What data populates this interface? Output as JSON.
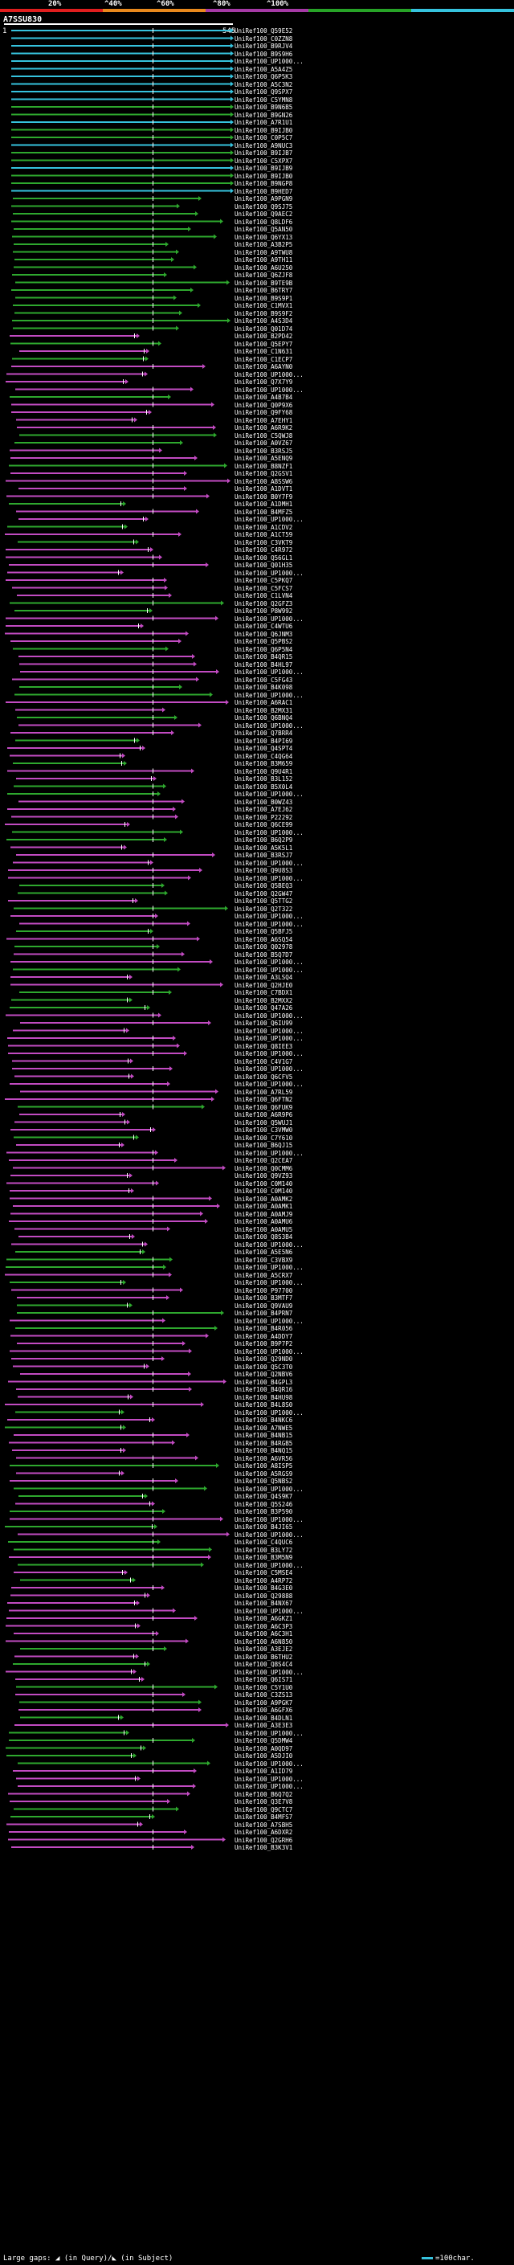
{
  "query": {
    "id": "A7SSU830",
    "range_start": "1",
    "range_end": "545"
  },
  "legend": {
    "labels": [
      "20%",
      "^40%",
      "^60%",
      "^80%",
      "^100%"
    ],
    "colors": [
      "#e01e1e",
      "#e9891d",
      "#a63aa6",
      "#27a327",
      "#36c3de"
    ]
  },
  "footer": {
    "text": "Large gaps: ◢ (in Query)/◣ (in Subject)",
    "scale_text": "=100char."
  },
  "colors": {
    "cyan": "#36c3de",
    "green": "#2ea82e",
    "magenta": "#c24bc2",
    "orange": "#e9891d",
    "white": "#ffffff"
  },
  "hits": [
    "UniRef100_Q59E52",
    "UniRef100_C0ZZN8",
    "UniRef100_B9RJV4",
    "UniRef100_B9S9H6",
    "UniRef100_UP1000...",
    "UniRef100_A5A4Z5",
    "UniRef100_Q6P5K3",
    "UniRef100_A5C3N2",
    "UniRef100_Q9SPX7",
    "UniRef100_C5YMN8",
    "UniRef100_B9N6B5",
    "UniRef100_B9GN26",
    "UniRef100_A7R1U1",
    "UniRef100_B9IJB0",
    "UniRef100_C0P5C7",
    "UniRef100_A9NUC3",
    "UniRef100_B9IJB7",
    "UniRef100_C5XPX7",
    "UniRef100_B9IJB9",
    "UniRef100_B9IJB0",
    "UniRef100_B9NGP8",
    "UniRef100_B9HED7",
    "UniRef100_A9PGN9",
    "UniRef100_Q9SJ75",
    "UniRef100_Q9AEC2",
    "UniRef100_Q8LDF6",
    "UniRef100_Q5AN50",
    "UniRef100_Q6YX13",
    "UniRef100_A3B2P5",
    "UniRef100_A9TWU8",
    "UniRef100_A9TH11",
    "UniRef100_A6U250",
    "UniRef100_Q6ZJF8",
    "UniRef100_B9TE9B",
    "UniRef100_B6TRY7",
    "UniRef100_B9S9P1",
    "UniRef100_C1MVX1",
    "UniRef100_B9S9F2",
    "UniRef100_A4S3D4",
    "UniRef100_Q01D74",
    "UniRef100_B2PD42",
    "UniRef100_Q5EPY7",
    "UniRef100_C1N631",
    "UniRef100_C1ECP7",
    "UniRef100_A6AYN0",
    "UniRef100_UP1000...",
    "UniRef100_Q7X7Y9",
    "UniRef100_UP1000...",
    "UniRef100_A4B7B4",
    "UniRef100_Q0P9X6",
    "UniRef100_Q9FY68",
    "UniRef100_A7EHY1",
    "UniRef100_A6R9K2",
    "UniRef100_C5QWJ8",
    "UniRef100_A0VZ67",
    "UniRef100_B3RSJ5",
    "UniRef100_A5ENQ9",
    "UniRef100_B8NZF1",
    "UniRef100_Q2GSV1",
    "UniRef100_A8SSW6",
    "UniRef100_A1DVT1",
    "UniRef100_B0Y7F9",
    "UniRef100_A1DMH1",
    "UniRef100_B4MFZ5",
    "UniRef100_UP1000...",
    "UniRef100_A1CDV2",
    "UniRef100_A1CT59",
    "UniRef100_C3VKT9",
    "UniRef100_C4R972",
    "UniRef100_Q56GL1",
    "UniRef100_Q01H35",
    "UniRef100_UP1000...",
    "UniRef100_C5PKQ7",
    "UniRef100_C5FCS7",
    "UniRef100_C1LVN4",
    "UniRef100_Q2GFZ3",
    "UniRef100_P8W992",
    "UniRef100_UP1000...",
    "UniRef100_C4WTU6",
    "UniRef100_Q6JNM3",
    "UniRef100_Q5PBS2",
    "UniRef100_Q6P5N4",
    "UniRef100_B4QR15",
    "UniRef100_B4HL97",
    "UniRef100_UP1000...",
    "UniRef100_C5FG43",
    "UniRef100_B4K098",
    "UniRef100_UP1000...",
    "UniRef100_A6RAC1",
    "UniRef100_B2MX31",
    "UniRef100_Q6BNQ4",
    "UniRef100_UP1000...",
    "UniRef100_Q7BRR4",
    "UniRef100_B4PI69",
    "UniRef100_Q4SPT4",
    "UniRef100_C4QG64",
    "UniRef100_B3M659",
    "UniRef100_Q9U4R1",
    "UniRef100_B3L152",
    "UniRef100_B5X0L4",
    "UniRef100_UP1000...",
    "UniRef100_B0WZ43",
    "UniRef100_A7EJ62",
    "UniRef100_P22292",
    "UniRef100_Q6CE99",
    "UniRef100_UP1000...",
    "UniRef100_B6Q2P9",
    "UniRef100_A5K5L1",
    "UniRef100_B3RSJ7",
    "UniRef100_UP1000...",
    "UniRef100_Q9U8S3",
    "UniRef100_UP1000...",
    "UniRef100_Q5BEQ3",
    "UniRef100_Q2GW47",
    "UniRef100_Q5TTG2",
    "UniRef100_Q2T322",
    "UniRef100_UP1000...",
    "UniRef100_UP1000...",
    "UniRef100_Q5BFJ5",
    "UniRef100_A6SQ54",
    "UniRef100_Q02978",
    "UniRef100_B5Q7D7",
    "UniRef100_UP1000...",
    "UniRef100_UP1000...",
    "UniRef100_A3LSQ4",
    "UniRef100_Q2HJE0",
    "UniRef100_C7BDX1",
    "UniRef100_B2MXX2",
    "UniRef100_Q47A26",
    "UniRef100_UP1000...",
    "UniRef100_Q6IU99",
    "UniRef100_UP1000...",
    "UniRef100_UP1000...",
    "UniRef100_Q8IEE3",
    "UniRef100_UP1000...",
    "UniRef100_C4V1G7",
    "UniRef100_UP1000...",
    "UniRef100_Q6CFV5",
    "UniRef100_UP1000...",
    "UniRef100_A7RL59",
    "UniRef100_Q6FTN2",
    "UniRef100_Q6FUK9",
    "UniRef100_A6R9P6",
    "UniRef100_Q5WUJ1",
    "UniRef100_C3VMW0",
    "UniRef100_C7Y610",
    "UniRef100_B6QJ15",
    "UniRef100_UP1000...",
    "UniRef100_Q2CEA7",
    "UniRef100_Q0CMM6",
    "UniRef100_Q9VZ93",
    "UniRef100_C0M140",
    "UniRef100_C0M140",
    "UniRef100_A0AMK2",
    "UniRef100_A0AMK1",
    "UniRef100_A0AMJ9",
    "UniRef100_A0AMU6",
    "UniRef100_A0AMU5",
    "UniRef100_Q8S3B4",
    "UniRef100_UP1000...",
    "UniRef100_A5E5N6",
    "UniRef100_C3VBX9",
    "UniRef100_UP1000...",
    "UniRef100_A5CRX7",
    "UniRef100_UP1000...",
    "UniRef100_P97700",
    "UniRef100_B3MTF7",
    "UniRef100_Q9VAU9",
    "UniRef100_B4PRN7",
    "UniRef100_UP1000...",
    "UniRef100_B4R056",
    "UniRef100_A4DDY7",
    "UniRef100_B9P7P2",
    "UniRef100_UP1000...",
    "UniRef100_Q29ND0",
    "UniRef100_Q5C3T0",
    "UniRef100_Q2NBV6",
    "UniRef100_B4GPL3",
    "UniRef100_B4QR16",
    "UniRef100_B4HU98",
    "UniRef100_B4L8S0",
    "UniRef100_UP1000...",
    "UniRef100_B4NKC6",
    "UniRef100_A7NWE5",
    "UniRef100_B4NB15",
    "UniRef100_B4RGB5",
    "UniRef100_B4NQ15",
    "UniRef100_A6VR56",
    "UniRef100_A8ISP5",
    "UniRef100_A5RGS9",
    "UniRef100_Q5NBS2",
    "UniRef100_UP1000...",
    "UniRef100_Q4S9K7",
    "UniRef100_Q5S246",
    "UniRef100_B3P590",
    "UniRef100_UP1000...",
    "UniRef100_B4JI65",
    "UniRef100_UP1000...",
    "UniRef100_C4QUC6",
    "UniRef100_B3LY72",
    "UniRef100_B3M5N9",
    "UniRef100_UP1000...",
    "UniRef100_C5MSE4",
    "UniRef100_A4RP72",
    "UniRef100_B4G3E0",
    "UniRef100_Q29888",
    "UniRef100_B4NX67",
    "UniRef100_UP1000...",
    "UniRef100_A6GKZ1",
    "UniRef100_A6C3P3",
    "UniRef100_A6C3H1",
    "UniRef100_A6N850",
    "UniRef100_A3EJE2",
    "UniRef100_B6THU2",
    "UniRef100_Q8S4C4",
    "UniRef100_UP1000...",
    "UniRef100_Q6IS71",
    "UniRef100_C5Y1U0",
    "UniRef100_C3ZS13",
    "UniRef100_A9PGK7",
    "UniRef100_A6GFX6",
    "UniRef100_B4DLN1",
    "UniRef100_A3E3E3",
    "UniRef100_UP1000...",
    "UniRef100_Q5DMW4",
    "UniRef100_A0QD97",
    "UniRef100_A5DJI0",
    "UniRef100_UP1000...",
    "UniRef100_A1ID79",
    "UniRef100_UP1000...",
    "UniRef100_UP1000...",
    "UniRef100_B6Q7Q2",
    "UniRef100_Q3E7V8",
    "UniRef100_Q9CTC7",
    "UniRef100_B4MFS7",
    "UniRef100_A7SBH5",
    "UniRef100_A6DXR2",
    "UniRef100_Q2GRH6",
    "UniRef100_B3K3V1"
  ]
}
